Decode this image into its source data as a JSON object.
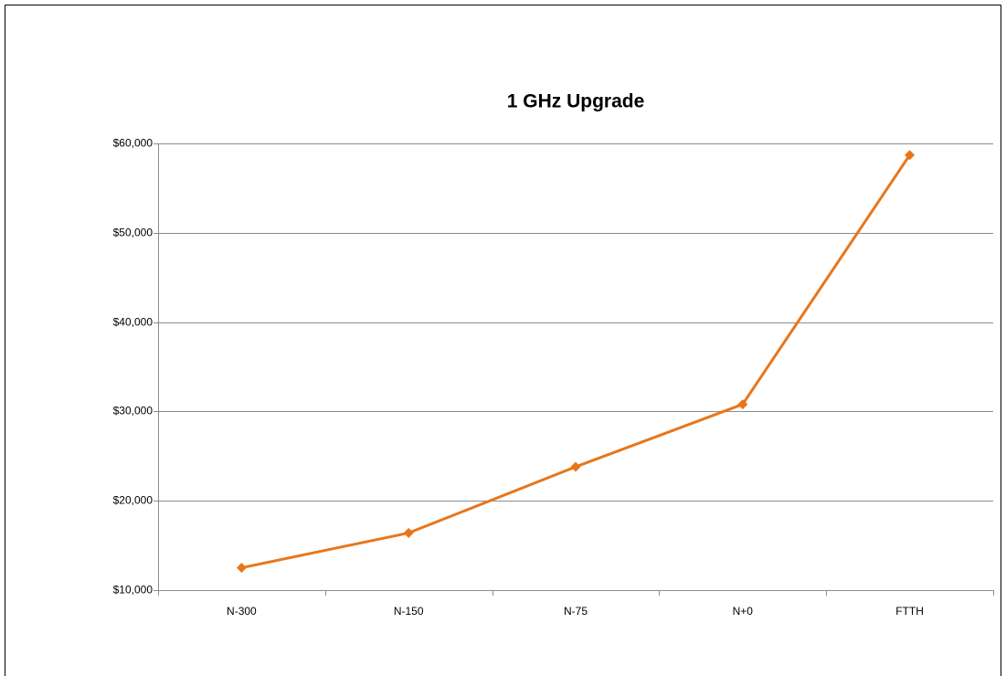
{
  "chart_data": {
    "type": "line",
    "title": "1 GHz Upgrade",
    "categories": [
      "N-300",
      "N-150",
      "N-75",
      "N+0",
      "FTTH"
    ],
    "series": [
      {
        "name": "1 GHz Upgrade",
        "color": "#e8761b",
        "values": [
          12500,
          16400,
          23800,
          30800,
          58700
        ]
      }
    ],
    "ylim": [
      10000,
      60000
    ],
    "yticks": [
      {
        "value": 10000,
        "label": "$10,000"
      },
      {
        "value": 20000,
        "label": "$20,000"
      },
      {
        "value": 30000,
        "label": "$30,000"
      },
      {
        "value": 40000,
        "label": "$40,000"
      },
      {
        "value": 50000,
        "label": "$50,000"
      },
      {
        "value": 60000,
        "label": "$60,000"
      }
    ],
    "grid": true
  }
}
